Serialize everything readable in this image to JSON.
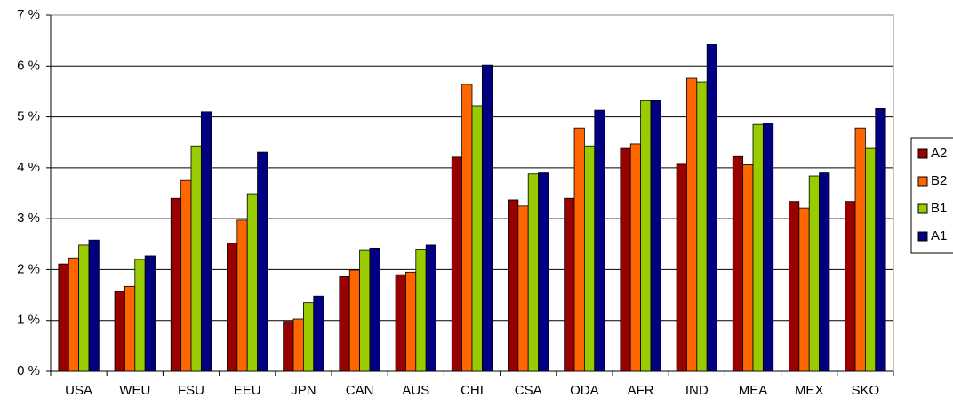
{
  "chart_data": {
    "type": "bar",
    "categories": [
      "USA",
      "WEU",
      "FSU",
      "EEU",
      "JPN",
      "CAN",
      "AUS",
      "CHI",
      "CSA",
      "ODA",
      "AFR",
      "IND",
      "MEA",
      "MEX",
      "SKO"
    ],
    "series": [
      {
        "name": "A2",
        "color": "#990000",
        "values": [
          2.11,
          1.57,
          3.4,
          2.52,
          0.98,
          1.86,
          1.9,
          4.21,
          3.37,
          3.4,
          4.38,
          4.07,
          4.22,
          3.34,
          3.34
        ]
      },
      {
        "name": "B2",
        "color": "#ff6600",
        "values": [
          2.23,
          1.67,
          3.75,
          2.97,
          1.03,
          1.99,
          1.95,
          5.64,
          3.25,
          4.78,
          4.47,
          5.76,
          4.06,
          3.21,
          4.78
        ]
      },
      {
        "name": "B1",
        "color": "#99cc00",
        "values": [
          2.48,
          2.2,
          4.43,
          3.49,
          1.35,
          2.39,
          2.4,
          5.22,
          3.88,
          4.43,
          5.32,
          5.69,
          4.85,
          3.84,
          4.38
        ]
      },
      {
        "name": "A1",
        "color": "#000080",
        "values": [
          2.58,
          2.27,
          5.1,
          4.31,
          1.48,
          2.42,
          2.48,
          6.02,
          3.9,
          5.13,
          5.32,
          6.43,
          4.88,
          3.9,
          5.16
        ]
      }
    ],
    "ylim": [
      0,
      7
    ],
    "yticks": [
      {
        "value": 0,
        "label": "0 %"
      },
      {
        "value": 1,
        "label": "1 %"
      },
      {
        "value": 2,
        "label": "2 %"
      },
      {
        "value": 3,
        "label": "3 %"
      },
      {
        "value": 4,
        "label": "4 %"
      },
      {
        "value": 5,
        "label": "5 %"
      },
      {
        "value": 6,
        "label": "6 %"
      },
      {
        "value": 7,
        "label": "7 %"
      }
    ],
    "grid": true,
    "legend": "right"
  }
}
